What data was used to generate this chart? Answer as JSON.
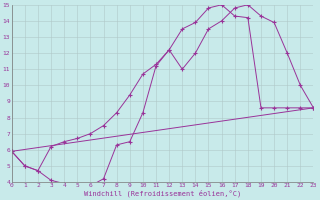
{
  "bg_color": "#c8eaea",
  "line_color": "#993399",
  "grid_color": "#b0c8c8",
  "xlabel": "Windchill (Refroidissement éolien,°C)",
  "xlim": [
    0,
    23
  ],
  "ylim": [
    4,
    15
  ],
  "xticks": [
    0,
    1,
    2,
    3,
    4,
    5,
    6,
    7,
    8,
    9,
    10,
    11,
    12,
    13,
    14,
    15,
    16,
    17,
    18,
    19,
    20,
    21,
    22,
    23
  ],
  "yticks": [
    4,
    5,
    6,
    7,
    8,
    9,
    10,
    11,
    12,
    13,
    14,
    15
  ],
  "line1_x": [
    0,
    1,
    2,
    3,
    4,
    5,
    6,
    7,
    8,
    9,
    10,
    11,
    12,
    13,
    14,
    15,
    16,
    17,
    18,
    19,
    20,
    21,
    22,
    23
  ],
  "line1_y": [
    5.9,
    5.0,
    4.7,
    4.1,
    3.9,
    3.8,
    3.75,
    4.2,
    6.3,
    6.5,
    8.3,
    11.2,
    12.2,
    11.0,
    12.0,
    13.5,
    14.0,
    14.8,
    15.0,
    14.3,
    13.9,
    12.0,
    10.0,
    8.6
  ],
  "line2_x": [
    0,
    1,
    2,
    3,
    4,
    5,
    6,
    7,
    8,
    9,
    10,
    11,
    12,
    13,
    14,
    15,
    16,
    17,
    18,
    19,
    20,
    21,
    22,
    23
  ],
  "line2_y": [
    5.9,
    5.0,
    4.7,
    6.2,
    6.5,
    6.7,
    7.0,
    7.5,
    8.3,
    9.4,
    10.7,
    11.3,
    12.2,
    13.5,
    13.9,
    14.8,
    15.0,
    14.3,
    14.2,
    8.6,
    8.6,
    8.6,
    8.6,
    8.6
  ],
  "line3_x": [
    0,
    23
  ],
  "line3_y": [
    5.9,
    8.6
  ]
}
